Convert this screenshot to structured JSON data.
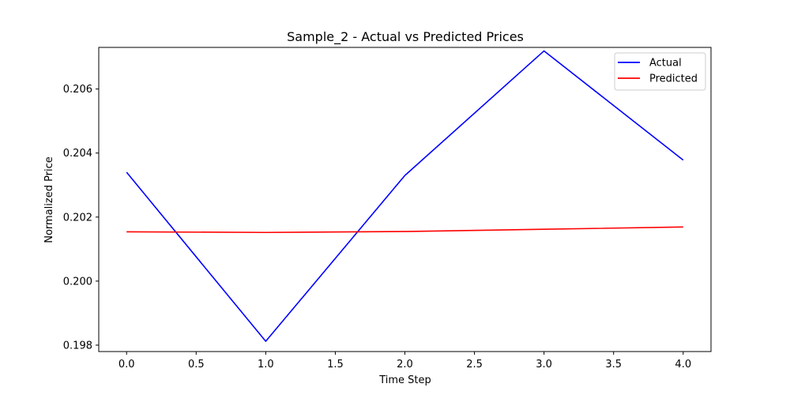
{
  "chart_data": {
    "type": "line",
    "title": "Sample_2 - Actual vs Predicted Prices",
    "xlabel": "Time Step",
    "ylabel": "Normalized Price",
    "x": [
      0,
      1,
      2,
      3,
      4
    ],
    "xlim": [
      -0.2,
      4.2
    ],
    "ylim": [
      0.1978,
      0.2073
    ],
    "xticks": [
      0.0,
      0.5,
      1.0,
      1.5,
      2.0,
      2.5,
      3.0,
      3.5,
      4.0
    ],
    "xtick_labels": [
      "0.0",
      "0.5",
      "1.0",
      "1.5",
      "2.0",
      "2.5",
      "3.0",
      "3.5",
      "4.0"
    ],
    "yticks": [
      0.198,
      0.2,
      0.202,
      0.204,
      0.206
    ],
    "ytick_labels": [
      "0.198",
      "0.200",
      "0.202",
      "0.204",
      "0.206"
    ],
    "grid": false,
    "legend_position": "top-right",
    "series": [
      {
        "name": "Actual",
        "color": "#0000ff",
        "values": [
          0.2034,
          0.19812,
          0.2033,
          0.20719,
          0.20378
        ]
      },
      {
        "name": "Predicted",
        "color": "#ff0000",
        "values": [
          0.20154,
          0.20152,
          0.20155,
          0.20162,
          0.20169
        ]
      }
    ]
  }
}
